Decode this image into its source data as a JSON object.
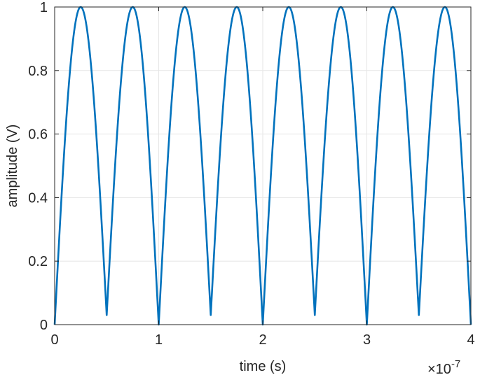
{
  "chart_data": {
    "type": "line",
    "title": "",
    "xlabel": "time (s)",
    "ylabel": "amplitude (V)",
    "x_exponent_label": "×10",
    "x_exponent_power": "-7",
    "xlim": [
      0,
      4
    ],
    "ylim": [
      0,
      1
    ],
    "x_ticks": [
      "0",
      "1",
      "2",
      "3",
      "4"
    ],
    "y_ticks": [
      "0",
      "0.2",
      "0.4",
      "0.6",
      "0.8",
      "1"
    ],
    "grid": true,
    "legend": "none",
    "line_color": "#0072BD",
    "series": [
      {
        "x": [
          0,
          0.25,
          0.5,
          0.75,
          1.0,
          1.25,
          1.5,
          1.75,
          2.0,
          2.25,
          2.5,
          2.75,
          3.0,
          3.25,
          3.5,
          3.75,
          4.0
        ],
        "y": [
          0,
          1,
          0.03,
          1,
          0,
          1,
          0.03,
          1,
          0,
          1,
          0.03,
          1,
          0,
          1,
          0.03,
          1,
          0
        ]
      }
    ]
  }
}
